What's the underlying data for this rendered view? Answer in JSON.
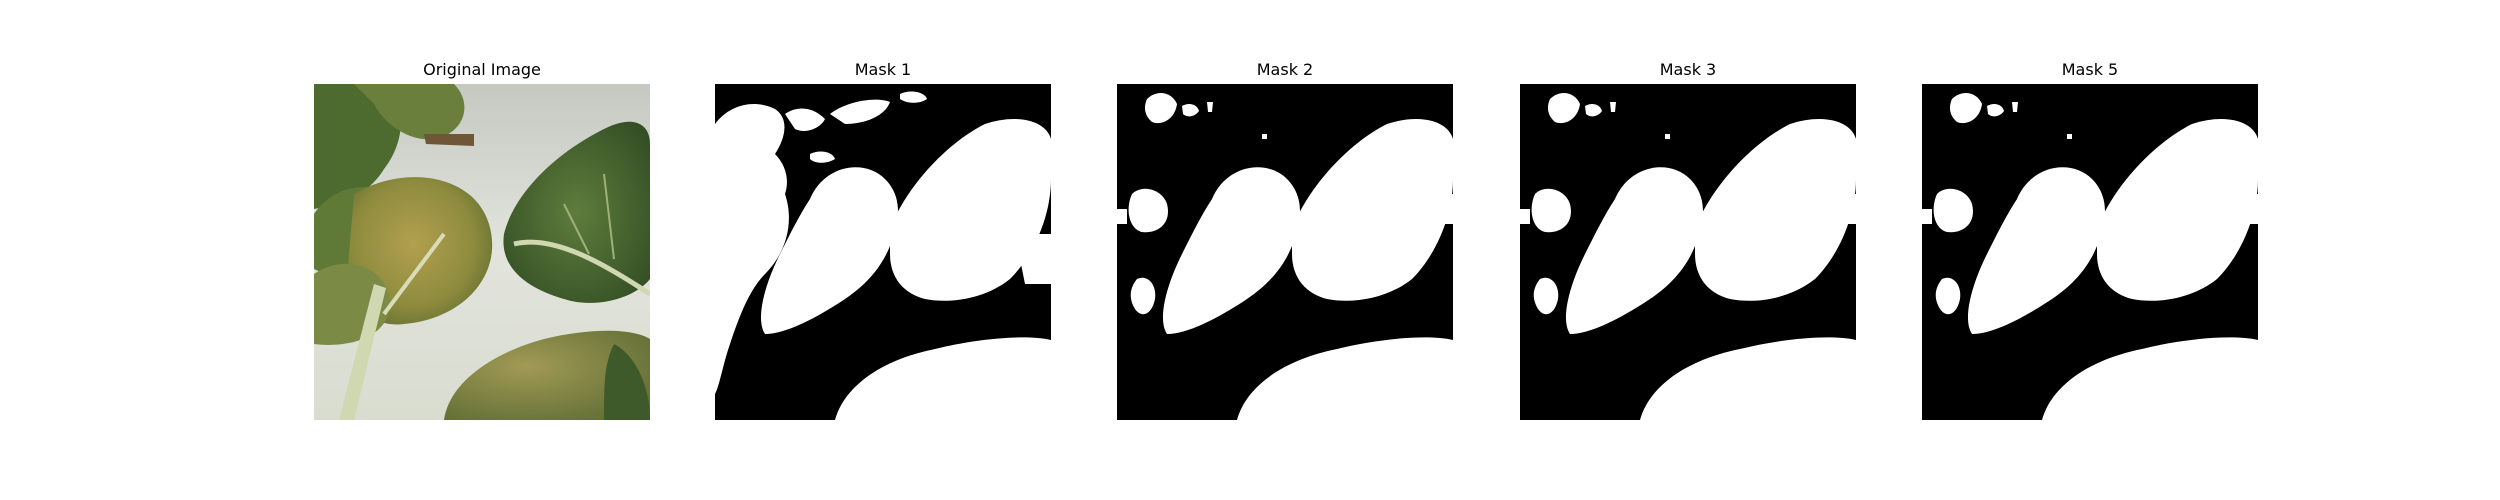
{
  "panels": [
    {
      "title": "Original Image",
      "kind": "photo"
    },
    {
      "title": "Mask 1",
      "kind": "mask"
    },
    {
      "title": "Mask 2",
      "kind": "mask"
    },
    {
      "title": "Mask 3",
      "kind": "mask"
    },
    {
      "title": "Mask 5",
      "kind": "mask"
    }
  ],
  "colors": {
    "mask_background": "#000000",
    "mask_foreground": "#ffffff",
    "photo_background": "#e4e6df",
    "leaf_dark": "#3e5e2b",
    "leaf_mid": "#5c7a3a",
    "leaf_light": "#8a9a4e",
    "leaf_brown": "#9b8a3e",
    "stem": "#c9d3a8"
  }
}
